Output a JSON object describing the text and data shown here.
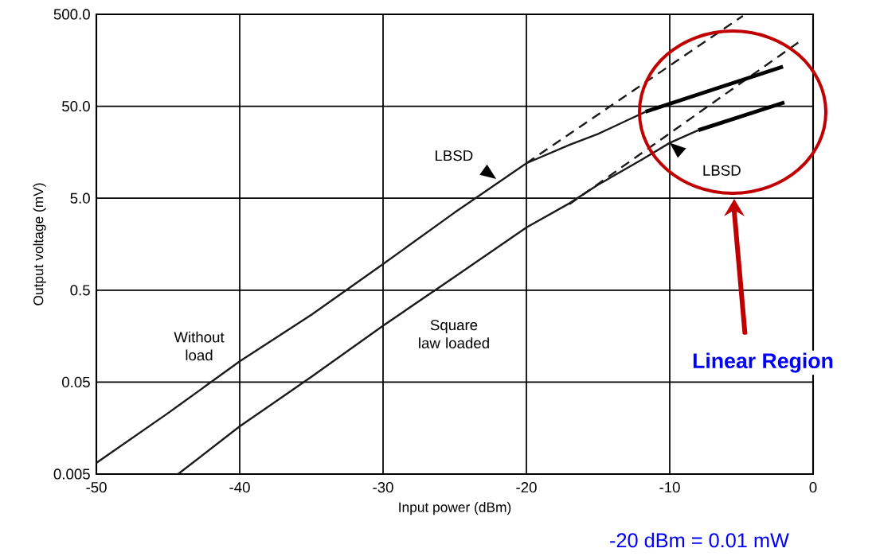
{
  "chart_data": {
    "type": "line",
    "xlabel": "Input power (dBm)",
    "ylabel": "Output voltage (mV)",
    "xlim": [
      -50,
      0
    ],
    "xticks": [
      -50,
      -40,
      -30,
      -20,
      -10,
      0
    ],
    "ylim": [
      0.005,
      500
    ],
    "yticks": [
      0.005,
      0.05,
      0.5,
      {
        "value": 5,
        "label": "5.0"
      },
      {
        "value": 50,
        "label": "50.0"
      },
      {
        "value": 500,
        "label": "500.0"
      }
    ],
    "log": "y",
    "grid": true,
    "marker": "none",
    "series": [
      {
        "name": "Without load",
        "color": "#1a1a1a",
        "line_style": "solid",
        "x": [
          -50,
          -45,
          -40,
          -35,
          -30,
          -25,
          -20,
          -17,
          -15,
          -13,
          -11.7
        ],
        "values": [
          0.0066,
          0.023,
          0.084,
          0.27,
          0.96,
          3.5,
          12,
          19,
          25,
          35,
          43.5
        ]
      },
      {
        "name": "Square law loaded",
        "color": "#1a1a1a",
        "line_style": "solid",
        "x": [
          -44.3,
          -40,
          -35,
          -30,
          -25,
          -20,
          -17,
          -15,
          -12,
          -10,
          -8
        ],
        "values": [
          0.005,
          0.0165,
          0.057,
          0.205,
          0.7,
          2.4,
          4.4,
          7,
          13,
          20,
          27.5
        ]
      },
      {
        "color": "#1a1a1a",
        "line_style": "dashed",
        "x": [
          -20,
          -4.9
        ],
        "values": [
          12,
          480
        ]
      },
      {
        "color": "#1a1a1a",
        "line_style": "dashed",
        "x": [
          -17,
          -0.8
        ],
        "values": [
          4.3,
          262
        ]
      },
      {
        "color": "#000000",
        "line_style": "solid",
        "x": [
          -11.7,
          -2.1
        ],
        "values": [
          43.5,
          135
        ]
      },
      {
        "color": "#000000",
        "line_style": "solid",
        "x": [
          -8,
          -2
        ],
        "values": [
          27.5,
          55
        ]
      }
    ],
    "annotations": [
      {
        "text": "LBSD",
        "x": -22.1,
        "y": 8.1
      },
      {
        "text": "LBSD",
        "x": -10,
        "y": 20
      },
      "Linear Region",
      "-20 dBm = 0.01 mW"
    ]
  }
}
